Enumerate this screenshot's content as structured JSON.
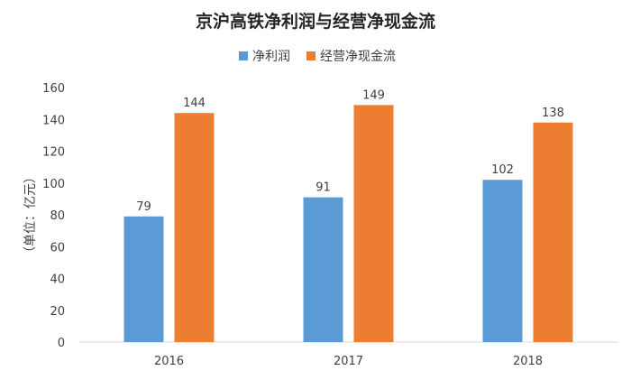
{
  "chart_data": {
    "type": "bar",
    "title": "京沪高铁净利润与经营净现金流",
    "ylabel": "（单位：亿元）",
    "xlabel": "",
    "categories": [
      "2016",
      "2017",
      "2018"
    ],
    "series": [
      {
        "name": "净利润",
        "values": [
          79,
          91,
          102
        ],
        "color": "#5B9BD5"
      },
      {
        "name": "经营净现金流",
        "values": [
          144,
          149,
          138
        ],
        "color": "#ED7D31"
      }
    ],
    "ylim": [
      0,
      160
    ],
    "yticks": [
      "0",
      "20",
      "40",
      "60",
      "80",
      "100",
      "120",
      "140",
      "160"
    ],
    "data_labels": [
      [
        "79",
        "91",
        "102"
      ],
      [
        "144",
        "149",
        "138"
      ]
    ],
    "grid": false,
    "legend": "top-center"
  }
}
